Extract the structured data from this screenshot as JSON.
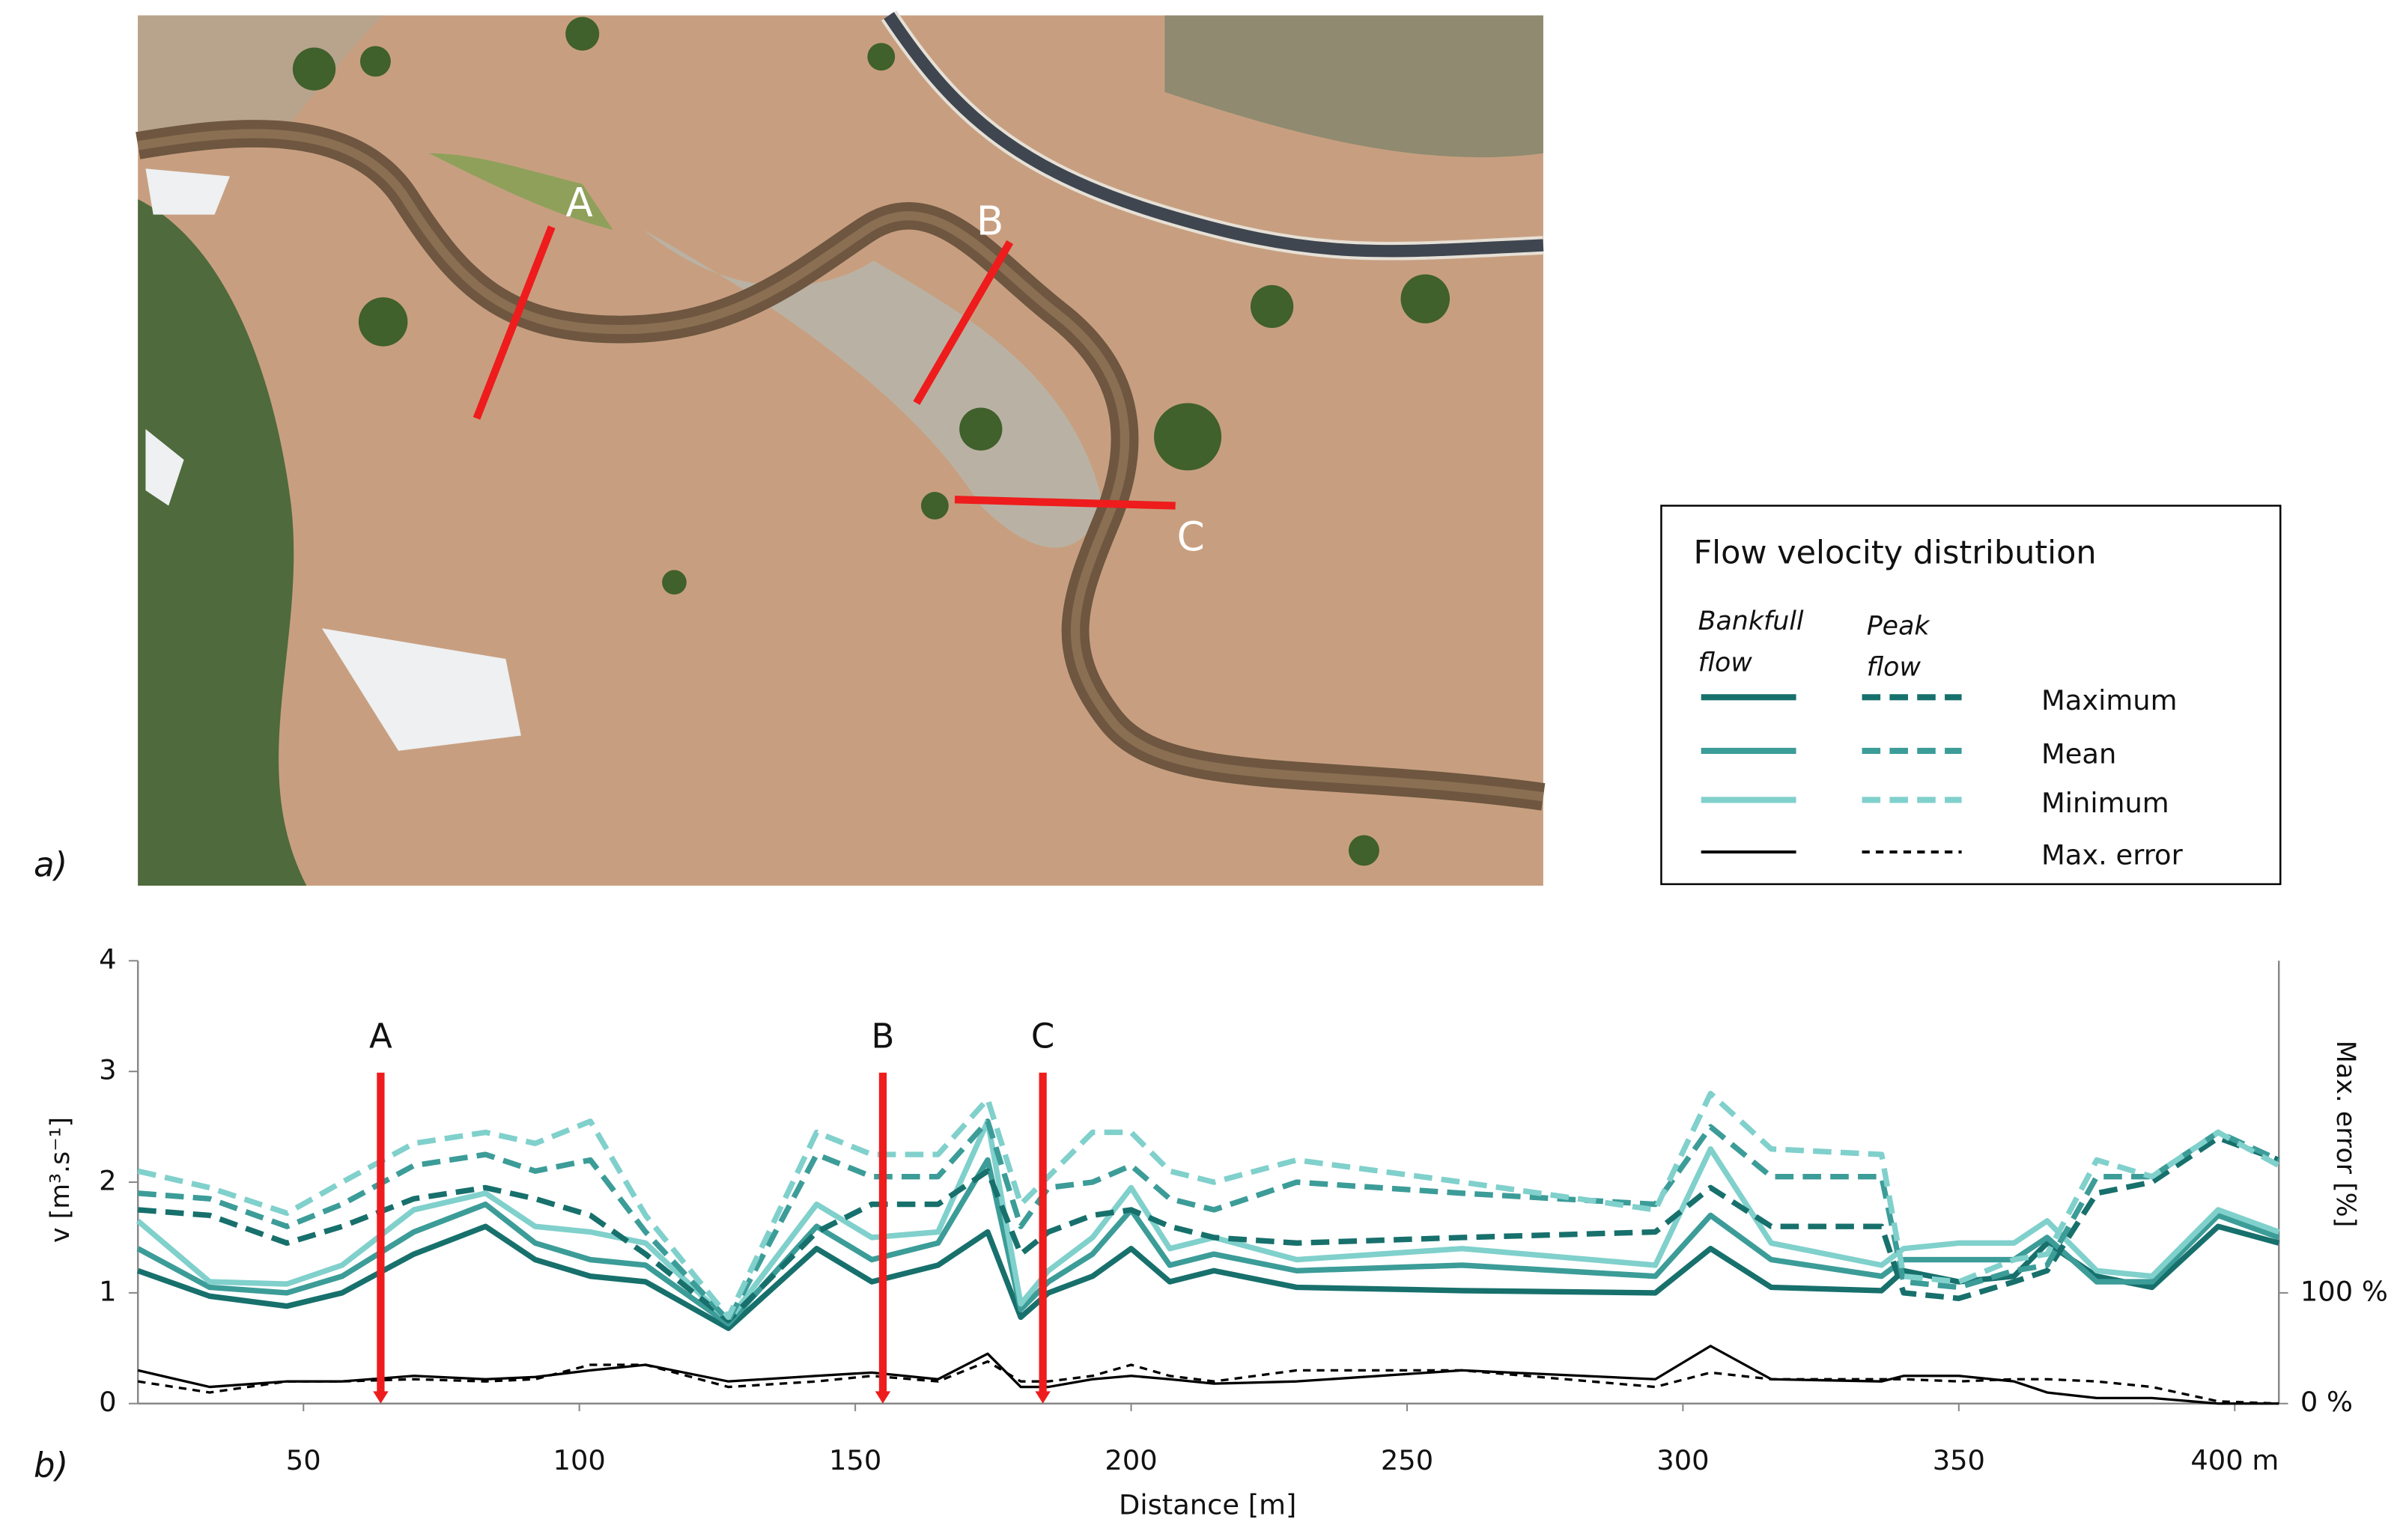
{
  "panel_labels": [
    "a)",
    "b)"
  ],
  "photo_labels": [
    "A",
    "B",
    "C"
  ],
  "chart_data": {
    "type": "line",
    "legend": {
      "title": "Flow velocity distribution"
    },
    "x": [
      20,
      33,
      47,
      57,
      70,
      83,
      92,
      102,
      112,
      127,
      143,
      153,
      165,
      174,
      180,
      185,
      193,
      200,
      207,
      215,
      230,
      260,
      295,
      305,
      316,
      336,
      340,
      350,
      360,
      366,
      375,
      385,
      397,
      408
    ],
    "xlim": [
      20,
      408
    ],
    "xticks": [
      50,
      100,
      150,
      200,
      250,
      300,
      350,
      {
        "value": 400,
        "label": "400 m"
      }
    ],
    "xlabel": "Distance [m]",
    "ylim": [
      0,
      4
    ],
    "yticks": [
      0,
      1,
      2,
      3,
      4
    ],
    "ylabel": "v [m³.s⁻¹]",
    "y2lim": [
      0,
      400
    ],
    "y2ticks": [
      {
        "value": 0,
        "label": "0 %"
      },
      {
        "value": 100,
        "label": "100 %"
      }
    ],
    "y2label": "Max. error [%]",
    "annotations": [
      {
        "text": "A",
        "x": 64
      },
      {
        "text": "B",
        "x": 155
      },
      {
        "text": "C",
        "x": 184
      }
    ],
    "groups": [
      {
        "name": "Bankfull flow",
        "dashed": false,
        "series": [
          {
            "name": "Maximum",
            "color": "#17706c",
            "values": [
              1.2,
              0.97,
              0.88,
              1.0,
              1.35,
              1.6,
              1.3,
              1.15,
              1.1,
              0.68,
              1.4,
              1.1,
              1.25,
              1.55,
              0.78,
              1.0,
              1.15,
              1.4,
              1.1,
              1.2,
              1.05,
              1.02,
              1.0,
              1.4,
              1.05,
              1.02,
              1.2,
              1.1,
              1.15,
              1.45,
              1.15,
              1.05,
              1.6,
              1.45
            ]
          },
          {
            "name": "Mean",
            "color": "#3c9c98",
            "values": [
              1.4,
              1.05,
              1.0,
              1.15,
              1.55,
              1.8,
              1.45,
              1.3,
              1.25,
              0.72,
              1.6,
              1.3,
              1.45,
              2.2,
              0.85,
              1.1,
              1.35,
              1.75,
              1.25,
              1.35,
              1.2,
              1.25,
              1.15,
              1.7,
              1.3,
              1.15,
              1.3,
              1.3,
              1.3,
              1.5,
              1.1,
              1.1,
              1.7,
              1.5
            ]
          },
          {
            "name": "Minimum",
            "color": "#80d0cc",
            "values": [
              1.65,
              1.1,
              1.08,
              1.25,
              1.75,
              1.9,
              1.6,
              1.55,
              1.45,
              0.75,
              1.8,
              1.5,
              1.55,
              2.55,
              0.9,
              1.2,
              1.5,
              1.95,
              1.4,
              1.5,
              1.3,
              1.4,
              1.25,
              2.3,
              1.45,
              1.25,
              1.4,
              1.45,
              1.45,
              1.65,
              1.2,
              1.15,
              1.75,
              1.55
            ]
          },
          {
            "name": "Max. error",
            "color": "#000000",
            "axis": "y2",
            "values": [
              30,
              15,
              20,
              20,
              25,
              22,
              24,
              30,
              35,
              20,
              25,
              28,
              22,
              45,
              15,
              15,
              22,
              25,
              22,
              18,
              20,
              30,
              22,
              52,
              22,
              20,
              25,
              25,
              20,
              10,
              5,
              5,
              0,
              0
            ]
          }
        ]
      },
      {
        "name": "Peak flow",
        "dashed": true,
        "series": [
          {
            "color": "#17706c",
            "values": [
              1.75,
              1.7,
              1.45,
              1.6,
              1.85,
              1.95,
              1.85,
              1.7,
              1.35,
              0.75,
              1.55,
              1.8,
              1.8,
              2.1,
              1.35,
              1.55,
              1.7,
              1.75,
              1.6,
              1.5,
              1.45,
              1.5,
              1.55,
              1.95,
              1.6,
              1.6,
              1.0,
              0.95,
              1.1,
              1.2,
              1.9,
              2.0,
              2.4,
              2.2
            ]
          },
          {
            "color": "#3c9c98",
            "values": [
              1.9,
              1.85,
              1.6,
              1.8,
              2.15,
              2.25,
              2.1,
              2.2,
              1.55,
              0.75,
              2.25,
              2.05,
              2.05,
              2.55,
              1.6,
              1.95,
              2.0,
              2.15,
              1.85,
              1.75,
              2.0,
              1.9,
              1.8,
              2.5,
              2.05,
              2.05,
              1.1,
              1.05,
              1.2,
              1.25,
              2.05,
              2.05,
              2.45,
              2.2
            ]
          },
          {
            "color": "#80d0cc",
            "values": [
              2.1,
              1.95,
              1.72,
              2.0,
              2.35,
              2.45,
              2.35,
              2.55,
              1.7,
              0.78,
              2.45,
              2.25,
              2.25,
              2.75,
              1.8,
              2.05,
              2.45,
              2.45,
              2.1,
              2.0,
              2.2,
              2.0,
              1.75,
              2.8,
              2.3,
              2.25,
              1.15,
              1.1,
              1.3,
              1.35,
              2.2,
              2.05,
              2.45,
              2.15
            ]
          },
          {
            "color": "#000000",
            "axis": "y2",
            "values": [
              20,
              10,
              20,
              20,
              22,
              20,
              22,
              35,
              35,
              15,
              20,
              25,
              20,
              38,
              20,
              20,
              25,
              35,
              25,
              20,
              30,
              30,
              15,
              28,
              22,
              22,
              22,
              20,
              22,
              22,
              20,
              15,
              2,
              0
            ]
          }
        ]
      }
    ]
  }
}
